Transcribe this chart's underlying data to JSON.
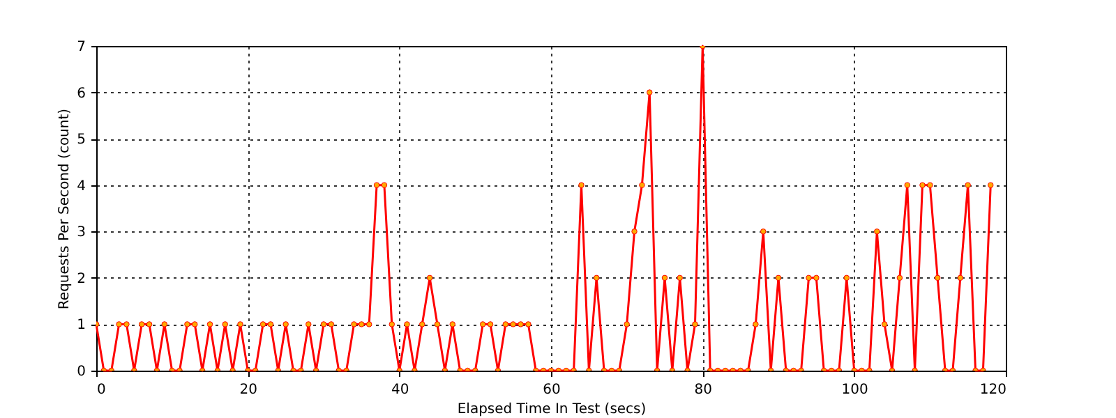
{
  "chart_data": {
    "type": "line",
    "xlabel": "Elapsed Time In Test (secs)",
    "ylabel": "Requests Per Second (count)",
    "x": [
      0,
      1,
      2,
      3,
      4,
      5,
      6,
      7,
      8,
      9,
      10,
      11,
      12,
      13,
      14,
      15,
      16,
      17,
      18,
      19,
      20,
      21,
      22,
      23,
      24,
      25,
      26,
      27,
      28,
      29,
      30,
      31,
      32,
      33,
      34,
      35,
      36,
      37,
      38,
      39,
      40,
      41,
      42,
      43,
      44,
      45,
      46,
      47,
      48,
      49,
      50,
      51,
      52,
      53,
      54,
      55,
      56,
      57,
      58,
      59,
      60,
      61,
      62,
      63,
      64,
      65,
      66,
      67,
      68,
      69,
      70,
      71,
      72,
      73,
      74,
      75,
      76,
      77,
      78,
      79,
      80,
      81,
      82,
      83,
      84,
      85,
      86,
      87,
      88,
      89,
      90,
      91,
      92,
      93,
      94,
      95,
      96,
      97,
      98,
      99,
      100,
      101,
      102,
      103,
      104,
      105,
      106,
      107,
      108,
      109,
      110,
      111,
      112,
      113,
      114,
      115,
      116,
      117,
      118
    ],
    "series": [
      {
        "color": "#ff0000",
        "values": [
          1,
          0,
          0,
          1,
          1,
          0,
          1,
          1,
          0,
          1,
          0,
          0,
          1,
          1,
          0,
          1,
          0,
          1,
          0,
          1,
          0,
          0,
          1,
          1,
          0,
          1,
          0,
          0,
          1,
          0,
          1,
          1,
          0,
          0,
          1,
          1,
          1,
          4,
          4,
          1,
          0,
          1,
          0,
          1,
          2,
          1,
          0,
          1,
          0,
          0,
          0,
          1,
          1,
          0,
          1,
          1,
          1,
          1,
          0,
          0,
          0,
          0,
          0,
          0,
          4,
          0,
          2,
          0,
          0,
          0,
          1,
          3,
          4,
          6,
          0,
          2,
          0,
          2,
          0,
          1,
          7,
          0,
          0,
          0,
          0,
          0,
          0,
          1,
          3,
          0,
          2,
          0,
          0,
          0,
          2,
          2,
          0,
          0,
          0,
          2,
          0,
          0,
          0,
          3,
          1,
          0,
          2,
          4,
          0,
          4,
          4,
          2,
          0,
          0,
          2,
          4,
          0,
          0,
          4
        ]
      }
    ],
    "xlim": [
      0,
      120
    ],
    "ylim": [
      0,
      7
    ],
    "xticks": [
      0,
      20,
      40,
      60,
      80,
      100,
      120
    ],
    "yticks": [
      0,
      1,
      2,
      3,
      4,
      5,
      6,
      7
    ],
    "grid": true,
    "marker": "circle",
    "line_style": "solid",
    "legend": false
  }
}
